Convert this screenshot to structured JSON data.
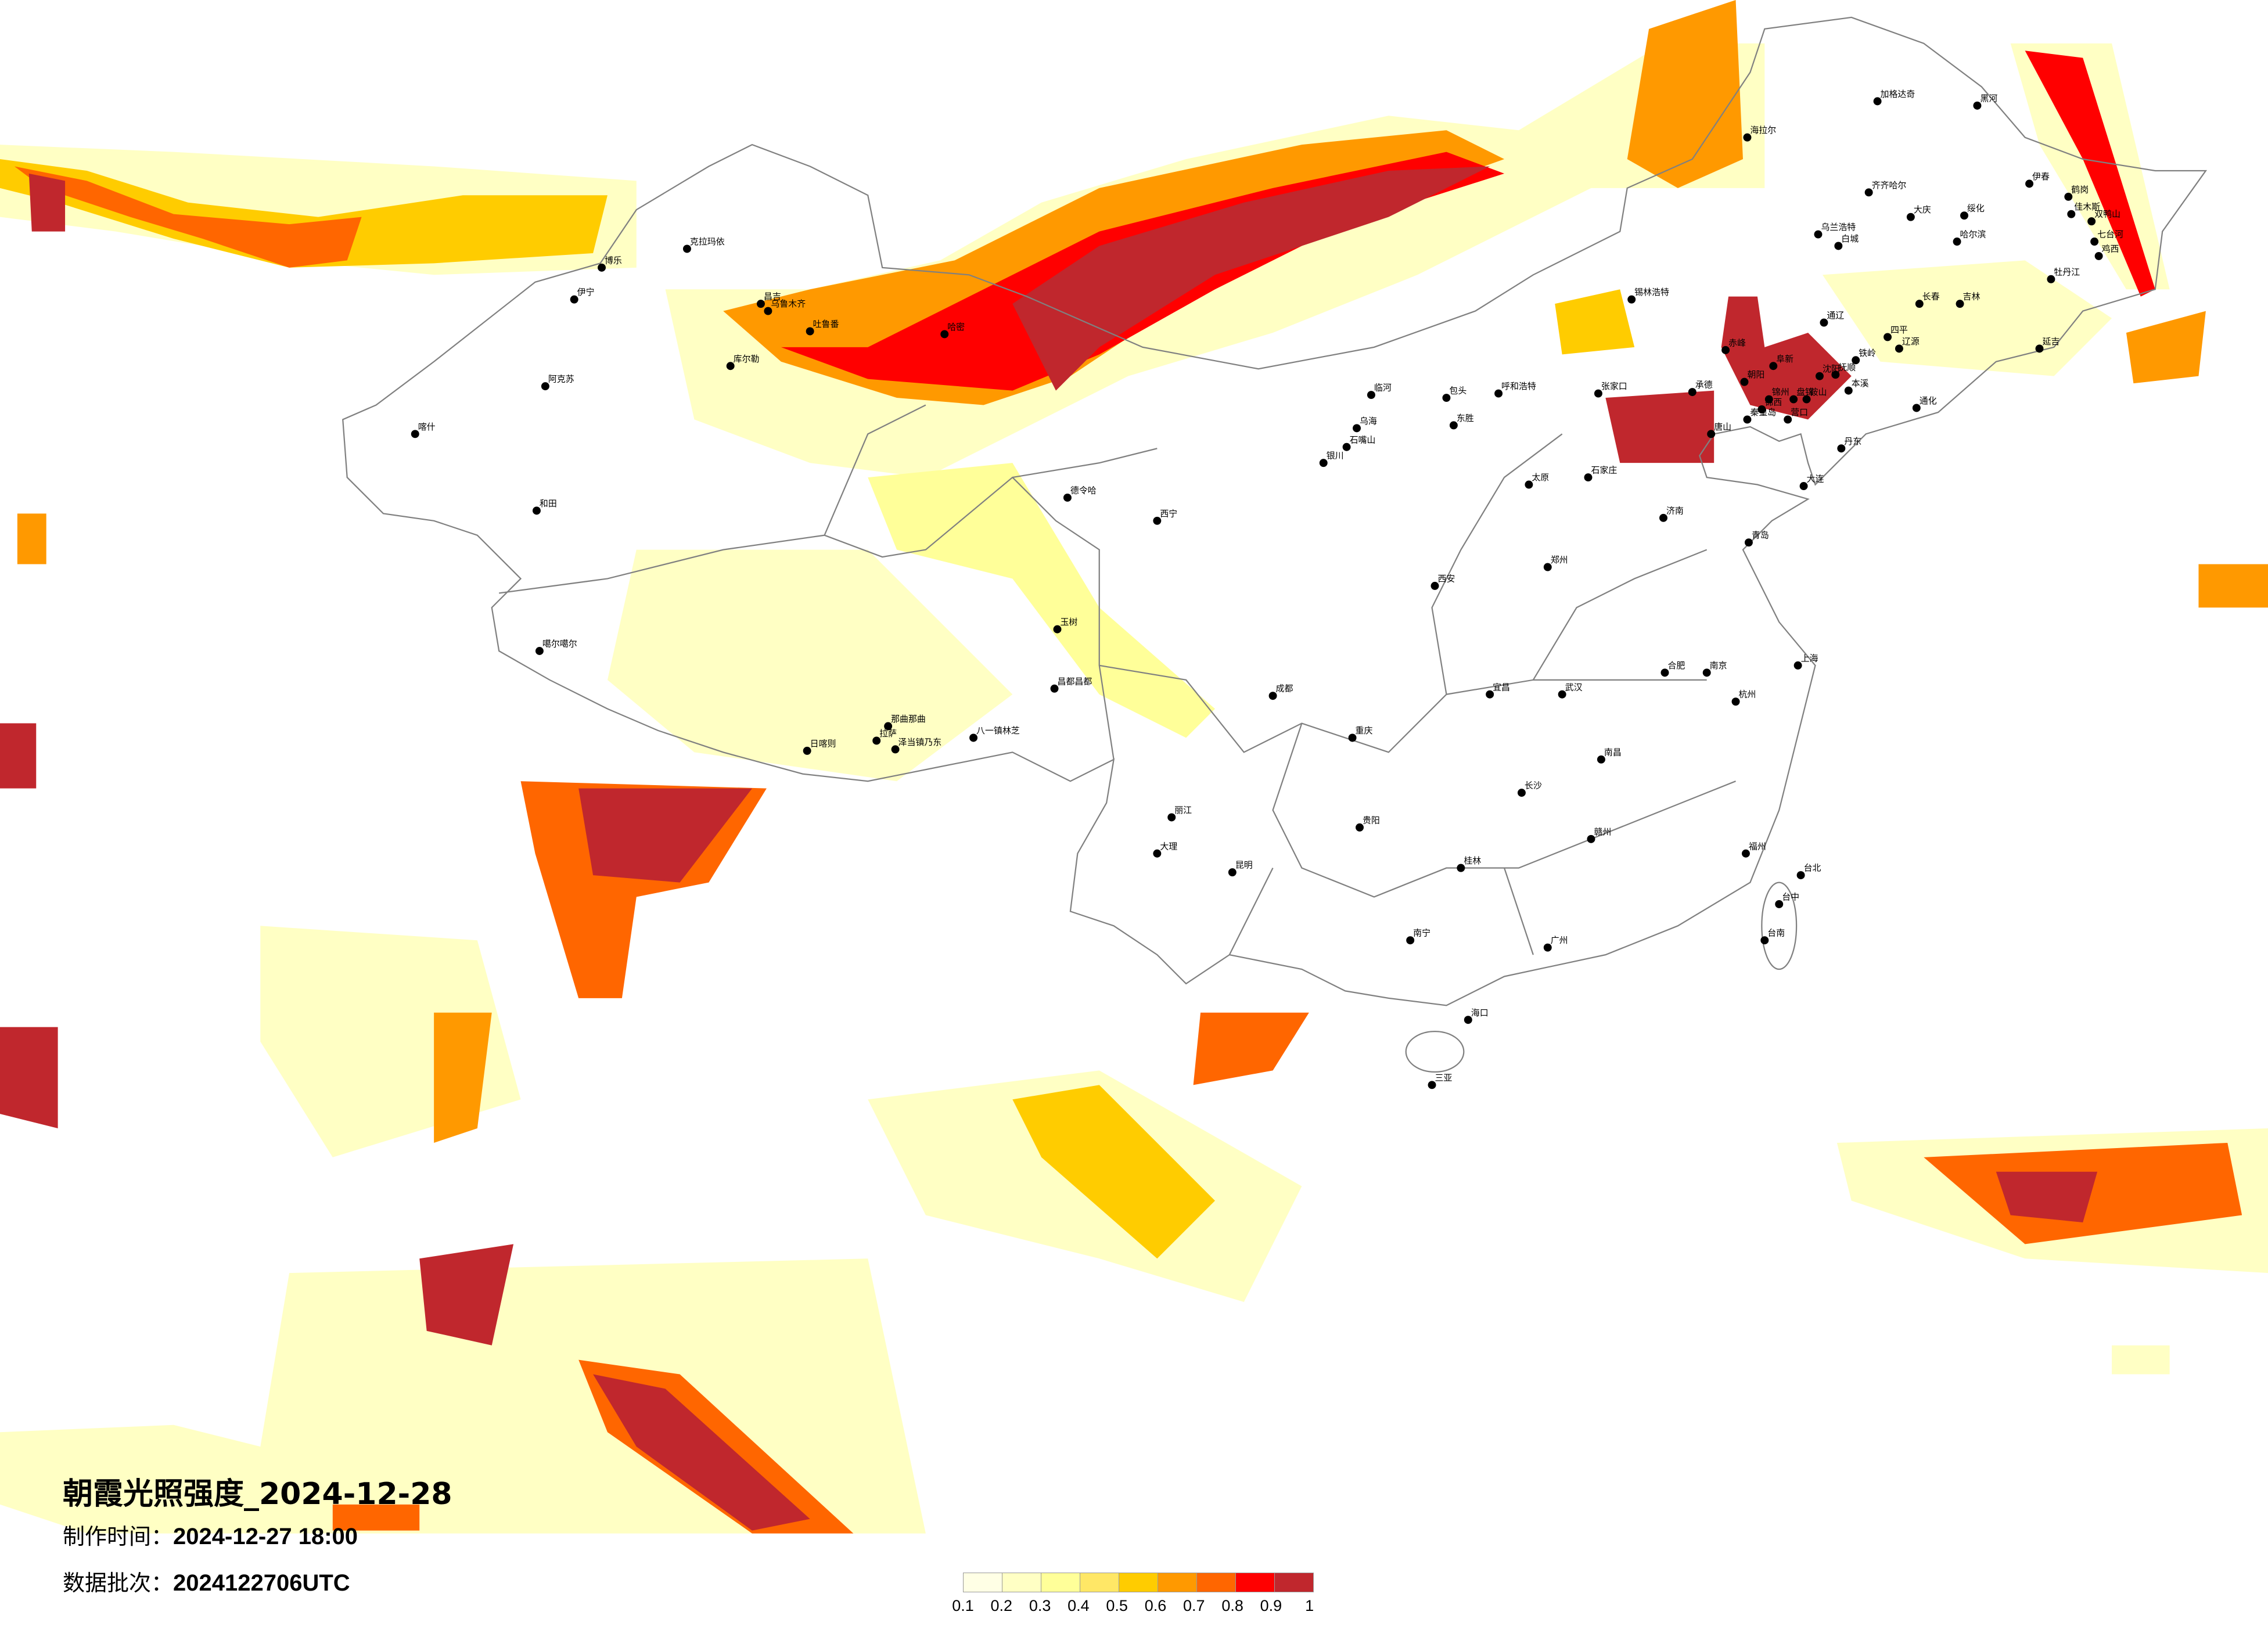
{
  "title": "朝霞光照强度_2024-12-28",
  "made_time": {
    "label": "制作时间：",
    "value": "2024-12-27 18:00"
  },
  "data_batch": {
    "label": "数据批次：",
    "value": "2024122706UTC"
  },
  "legend": {
    "ticks": [
      "0.1",
      "0.2",
      "0.3",
      "0.4",
      "0.5",
      "0.6",
      "0.7",
      "0.8",
      "0.9",
      "1"
    ],
    "colors": [
      "#FFFFE5",
      "#FFFFC4",
      "#FFFF99",
      "#FFE766",
      "#FFCC00",
      "#FF9900",
      "#FF6600",
      "#FF0000",
      "#C0272D"
    ]
  },
  "map": {
    "border_color": "#808080",
    "city_dot_color": "#000000"
  },
  "cities": [
    {
      "name": "克拉玛依"
    },
    {
      "name": "博乐"
    },
    {
      "name": "伊宁"
    },
    {
      "name": "昌吉"
    },
    {
      "name": "乌鲁木齐"
    },
    {
      "name": "吐鲁番"
    },
    {
      "name": "哈密"
    },
    {
      "name": "库尔勒"
    },
    {
      "name": "阿克苏"
    },
    {
      "name": "喀什"
    },
    {
      "name": "和田"
    },
    {
      "name": "噶尔噶尔"
    },
    {
      "name": "那曲那曲"
    },
    {
      "name": "日喀则"
    },
    {
      "name": "拉萨"
    },
    {
      "name": "泽当镇乃东"
    },
    {
      "name": "八一镇林芝"
    },
    {
      "name": "昌都昌都"
    },
    {
      "name": "玉树"
    },
    {
      "name": "德令哈"
    },
    {
      "name": "加格达奇"
    },
    {
      "name": "黑河"
    },
    {
      "name": "海拉尔"
    },
    {
      "name": "齐齐哈尔"
    },
    {
      "name": "大庆"
    },
    {
      "name": "绥化"
    },
    {
      "name": "哈尔滨"
    },
    {
      "name": "伊春"
    },
    {
      "name": "鹤岗"
    },
    {
      "name": "佳木斯"
    },
    {
      "name": "双鸭山"
    },
    {
      "name": "七台河"
    },
    {
      "name": "鸡西"
    },
    {
      "name": "牡丹江"
    },
    {
      "name": "乌兰浩特"
    },
    {
      "name": "白城"
    },
    {
      "name": "长春"
    },
    {
      "name": "吉林"
    },
    {
      "name": "通辽"
    },
    {
      "name": "四平"
    },
    {
      "name": "辽源"
    },
    {
      "name": "延吉"
    },
    {
      "name": "赤峰"
    },
    {
      "name": "阜新"
    },
    {
      "name": "朝阳"
    },
    {
      "name": "铁岭"
    },
    {
      "name": "沈阳"
    },
    {
      "name": "抚顺"
    },
    {
      "name": "锦州"
    },
    {
      "name": "锦西"
    },
    {
      "name": "盘锦"
    },
    {
      "name": "营口"
    },
    {
      "name": "鞍山"
    },
    {
      "name": "本溪"
    },
    {
      "name": "丹东"
    },
    {
      "name": "大连"
    },
    {
      "name": "秦皇岛"
    },
    {
      "name": "唐山"
    },
    {
      "name": "承德"
    },
    {
      "name": "通化"
    },
    {
      "name": "张家口"
    },
    {
      "name": "呼和浩特"
    },
    {
      "name": "包头"
    },
    {
      "name": "临河"
    },
    {
      "name": "东胜"
    },
    {
      "name": "乌海"
    },
    {
      "name": "石嘴山"
    },
    {
      "name": "银川"
    },
    {
      "name": "锡林浩特"
    },
    {
      "name": "太原"
    },
    {
      "name": "石家庄"
    },
    {
      "name": "济南"
    },
    {
      "name": "青岛"
    },
    {
      "name": "郑州"
    },
    {
      "name": "西安"
    },
    {
      "name": "西宁"
    },
    {
      "name": "武汉"
    },
    {
      "name": "长沙"
    },
    {
      "name": "南昌"
    },
    {
      "name": "合肥"
    },
    {
      "name": "南京"
    },
    {
      "name": "上海"
    },
    {
      "name": "杭州"
    },
    {
      "name": "福州"
    },
    {
      "name": "广州"
    },
    {
      "name": "南宁"
    },
    {
      "name": "海口"
    },
    {
      "name": "三亚"
    },
    {
      "name": "贵阳"
    },
    {
      "name": "昆明"
    },
    {
      "name": "成都"
    },
    {
      "name": "重庆"
    },
    {
      "name": "台北"
    },
    {
      "name": "台中"
    },
    {
      "name": "台南"
    },
    {
      "name": "大理"
    },
    {
      "name": "丽江"
    },
    {
      "name": "桂林"
    },
    {
      "name": "赣州"
    },
    {
      "name": "宜昌"
    }
  ]
}
